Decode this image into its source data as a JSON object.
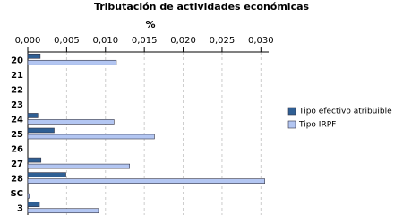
{
  "chart_data": {
    "type": "hbar",
    "title": "Tributación de actividades económicas",
    "x_label": "%",
    "categories": [
      "20",
      "21",
      "22",
      "23",
      "24",
      "25",
      "26",
      "27",
      "28",
      "SC",
      "3"
    ],
    "series": [
      {
        "name": "Tipo efectivo atribuible",
        "color": "#2f5f94",
        "values": [
          0.0016,
          0,
          0,
          0,
          0.0013,
          0.0034,
          0,
          0.0017,
          0.0049,
          0,
          0.0015
        ]
      },
      {
        "name": "Tipo IRPF",
        "color": "#b3c6f2",
        "values": [
          0.0114,
          0,
          0,
          0,
          0.0111,
          0.0163,
          0,
          0.0131,
          0.0305,
          0.0002,
          0.0091
        ]
      }
    ],
    "xlim": [
      0,
      0.031
    ],
    "xticks": [
      {
        "value": 0,
        "label": "0,000"
      },
      {
        "value": 0.005,
        "label": "0,005"
      },
      {
        "value": 0.01,
        "label": "0,010"
      },
      {
        "value": 0.015,
        "label": "0,015"
      },
      {
        "value": 0.02,
        "label": "0,020"
      },
      {
        "value": 0.025,
        "label": "0,025"
      },
      {
        "value": 0.03,
        "label": "0,030"
      }
    ],
    "grid": true,
    "legend": "right"
  }
}
